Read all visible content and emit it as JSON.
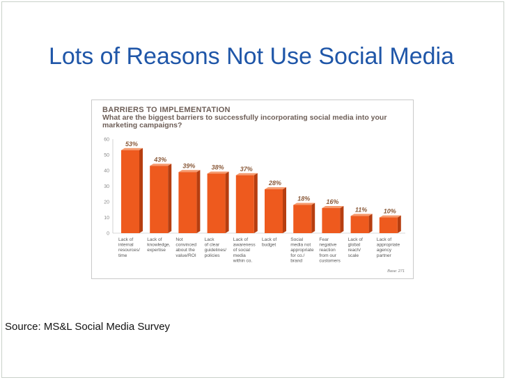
{
  "slide": {
    "title": "Lots of Reasons Not Use Social Media",
    "source": "Source: MS&L Social Media Survey"
  },
  "colors": {
    "title": "#1f56a8",
    "bar_front": "#ee5a1e",
    "bar_side": "#b63e10",
    "bar_top": "#f59a6e",
    "chart_heading": "#6d5e57"
  },
  "chart_data": {
    "type": "bar",
    "title": "BARRIERS TO IMPLEMENTATION",
    "subtitle": "What are the biggest barriers to successfully incorporating social media into your marketing campaigns?",
    "categories": [
      [
        "Lack of",
        "internal",
        "resources/",
        "time"
      ],
      [
        "Lack of",
        "knowledge,",
        "expertise"
      ],
      [
        "Not",
        "convinced",
        "about the",
        "value/ROI"
      ],
      [
        "Lack",
        "of clear",
        "guidelines/",
        "policies"
      ],
      [
        "Lack of",
        "awareness",
        "of social",
        "media",
        "within co."
      ],
      [
        "Lack of",
        "budget"
      ],
      [
        "Social",
        "media not",
        "appropriate",
        "for co./",
        "brand"
      ],
      [
        "Fear",
        "negative",
        "reaction",
        "from our",
        "customers"
      ],
      [
        "Lack of",
        "global",
        "reach/",
        "scale"
      ],
      [
        "Lack of",
        "appropriate",
        "agency",
        "partner"
      ]
    ],
    "values": [
      53,
      43,
      39,
      38,
      37,
      28,
      18,
      16,
      11,
      10
    ],
    "value_labels": [
      "53%",
      "43%",
      "39%",
      "38%",
      "37%",
      "28%",
      "18%",
      "16%",
      "11%",
      "10%"
    ],
    "yticks": [
      0,
      10,
      20,
      30,
      40,
      50,
      60
    ],
    "ylim": [
      0,
      60
    ],
    "grid": false,
    "note": "Base: 271"
  }
}
